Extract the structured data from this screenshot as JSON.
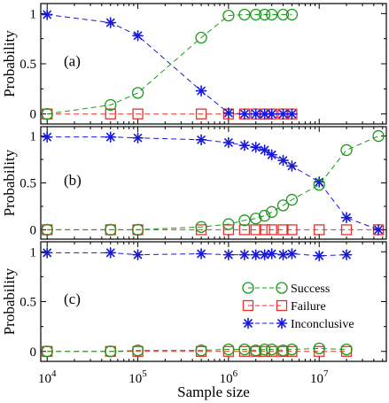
{
  "chart_data": {
    "type": "line",
    "xlabel": "Sample size",
    "xscale": "log",
    "xlim": [
      8500,
      55000000
    ],
    "grid": false,
    "legend_placement": "inside panel (c), right-center",
    "x_tick_labels": [
      {
        "base": "10",
        "exp": "4",
        "value": 10000
      },
      {
        "base": "10",
        "exp": "5",
        "value": 100000
      },
      {
        "base": "10",
        "exp": "6",
        "value": 1000000
      },
      {
        "base": "10",
        "exp": "7",
        "value": 10000000
      }
    ],
    "series_styles": {
      "Success": {
        "color": "#1a9a1a",
        "marker": "circle",
        "dash": "6,4"
      },
      "Failure": {
        "color": "#e8312a",
        "marker": "square",
        "dash": "6,4"
      },
      "Inconclusive": {
        "color": "#1818dd",
        "marker": "star",
        "dash": "6,4"
      }
    },
    "legend": [
      "Success",
      "Failure",
      "Inconclusive"
    ],
    "panels": [
      {
        "tag": "(a)",
        "ylabel": "Probability",
        "ylim": [
          -0.1,
          1.1
        ],
        "yticks": [
          0,
          0.5,
          1
        ],
        "ytick_labels": [
          "0",
          "0.5",
          "1"
        ],
        "series": [
          {
            "name": "Success",
            "x": [
              10000,
              50000,
              100000,
              500000,
              1000000,
              1500000,
              2000000,
              2500000,
              3000000,
              4000000,
              5000000
            ],
            "y": [
              0,
              0.09,
              0.21,
              0.76,
              0.98,
              0.99,
              0.99,
              0.99,
              0.99,
              0.99,
              0.99
            ]
          },
          {
            "name": "Failure",
            "x": [
              10000,
              50000,
              100000,
              500000,
              1000000,
              1500000,
              2000000,
              2500000,
              3000000,
              4000000,
              5000000
            ],
            "y": [
              0,
              0,
              0,
              0,
              0,
              0,
              0,
              0,
              0,
              0,
              0
            ]
          },
          {
            "name": "Inconclusive",
            "x": [
              10000,
              50000,
              100000,
              500000,
              1000000,
              1500000,
              2000000,
              2500000,
              3000000,
              4000000,
              5000000
            ],
            "y": [
              0.99,
              0.91,
              0.78,
              0.23,
              0.01,
              0.0,
              0.0,
              0.0,
              0.0,
              0.0,
              0.0
            ]
          }
        ]
      },
      {
        "tag": "(b)",
        "ylabel": "Probability",
        "ylim": [
          -0.1,
          1.1
        ],
        "yticks": [
          0,
          0.5,
          1
        ],
        "ytick_labels": [
          "0",
          "0.5",
          "1"
        ],
        "series": [
          {
            "name": "Success",
            "x": [
              10000,
              50000,
              100000,
              500000,
              1000000,
              1500000,
              2000000,
              2500000,
              3000000,
              4000000,
              5000000,
              10000000,
              20000000,
              45000000
            ],
            "y": [
              0,
              0,
              0,
              0.03,
              0.06,
              0.1,
              0.12,
              0.15,
              0.19,
              0.26,
              0.32,
              0.48,
              0.85,
              1.0
            ]
          },
          {
            "name": "Failure",
            "x": [
              10000,
              50000,
              100000,
              500000,
              1000000,
              1500000,
              2000000,
              2500000,
              3000000,
              4000000,
              5000000,
              10000000,
              20000000,
              45000000
            ],
            "y": [
              0,
              0,
              0,
              0,
              0,
              0,
              0,
              0,
              0,
              0,
              0,
              0,
              0,
              0
            ]
          },
          {
            "name": "Inconclusive",
            "x": [
              10000,
              50000,
              100000,
              500000,
              1000000,
              1500000,
              2000000,
              2500000,
              3000000,
              4000000,
              5000000,
              10000000,
              20000000,
              45000000
            ],
            "y": [
              0.99,
              0.99,
              0.98,
              0.96,
              0.93,
              0.9,
              0.88,
              0.85,
              0.8,
              0.74,
              0.68,
              0.51,
              0.13,
              0.0
            ]
          }
        ]
      },
      {
        "tag": "(c)",
        "ylabel": "Probability",
        "ylim": [
          -0.1,
          1.1
        ],
        "yticks": [
          0,
          0.5,
          1
        ],
        "ytick_labels": [
          "0",
          "0.5",
          "1"
        ],
        "series": [
          {
            "name": "Success",
            "x": [
              10000,
              50000,
              100000,
              500000,
              1000000,
              1500000,
              2000000,
              2500000,
              3000000,
              4000000,
              5000000,
              10000000,
              20000000
            ],
            "y": [
              0,
              0,
              0.01,
              0.01,
              0.02,
              0.02,
              0.01,
              0.02,
              0.02,
              0.01,
              0.02,
              0.03,
              0.02
            ]
          },
          {
            "name": "Failure",
            "x": [
              10000,
              50000,
              100000,
              500000,
              1000000,
              1500000,
              2000000,
              2500000,
              3000000,
              4000000,
              5000000,
              10000000,
              20000000
            ],
            "y": [
              0,
              0,
              0,
              0,
              0,
              0,
              0,
              0,
              0,
              0,
              0,
              0,
              0
            ]
          },
          {
            "name": "Inconclusive",
            "x": [
              10000,
              50000,
              100000,
              500000,
              1000000,
              1500000,
              2000000,
              2500000,
              3000000,
              4000000,
              5000000,
              10000000,
              20000000
            ],
            "y": [
              0.99,
              0.99,
              0.97,
              0.98,
              0.97,
              0.97,
              0.97,
              0.97,
              0.98,
              0.97,
              0.98,
              0.96,
              0.97
            ]
          }
        ]
      }
    ]
  }
}
